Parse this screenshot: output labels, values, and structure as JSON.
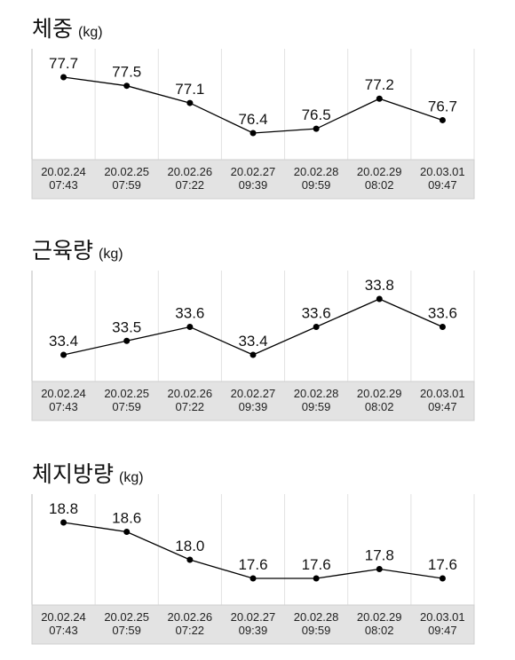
{
  "chart_data": [
    {
      "type": "line",
      "title": "체중",
      "unit": "(kg)",
      "color": "#000000",
      "categories": [
        "20.02.24\n07:43",
        "20.02.25\n07:59",
        "20.02.26\n07:22",
        "20.02.27\n09:39",
        "20.02.28\n09:59",
        "20.02.29\n08:02",
        "20.03.01\n09:47"
      ],
      "values": [
        77.7,
        77.5,
        77.1,
        76.4,
        76.5,
        77.2,
        76.7
      ]
    },
    {
      "type": "line",
      "title": "근육량",
      "unit": "(kg)",
      "color": "#000000",
      "categories": [
        "20.02.24\n07:43",
        "20.02.25\n07:59",
        "20.02.26\n07:22",
        "20.02.27\n09:39",
        "20.02.28\n09:59",
        "20.02.29\n08:02",
        "20.03.01\n09:47"
      ],
      "values": [
        33.4,
        33.5,
        33.6,
        33.4,
        33.6,
        33.8,
        33.6
      ]
    },
    {
      "type": "line",
      "title": "체지방량",
      "unit": "(kg)",
      "color": "#000000",
      "categories": [
        "20.02.24\n07:43",
        "20.02.25\n07:59",
        "20.02.26\n07:22",
        "20.02.27\n09:39",
        "20.02.28\n09:59",
        "20.02.29\n08:02",
        "20.03.01\n09:47"
      ],
      "values": [
        18.8,
        18.6,
        18.0,
        17.6,
        17.6,
        17.8,
        17.6
      ],
      "value_labels": [
        "18.8",
        "18.6",
        "18.0",
        "17.6",
        "17.6",
        "17.8",
        "17.6"
      ]
    }
  ]
}
